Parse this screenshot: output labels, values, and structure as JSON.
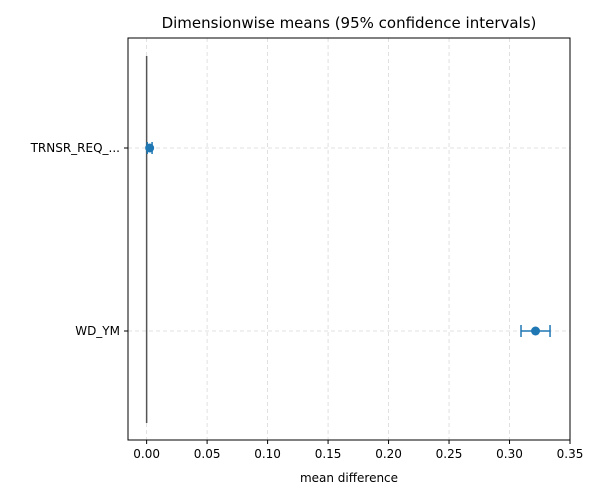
{
  "chart_data": {
    "type": "scatter",
    "title": "Dimensionwise means (95% confidence intervals)",
    "xlabel": "mean difference",
    "ylabel": "",
    "xlim": [
      -0.0154,
      0.35
    ],
    "xticks": [
      0.0,
      0.05,
      0.1,
      0.15,
      0.2,
      0.25,
      0.3,
      0.35
    ],
    "xtick_labels": [
      "0.00",
      "0.05",
      "0.10",
      "0.15",
      "0.20",
      "0.25",
      "0.30",
      "0.35"
    ],
    "grid": true,
    "reference_line_x": 0.0,
    "categories": [
      "TRNSR_REQ_...",
      "WD_YM"
    ],
    "points": [
      {
        "label": "TRNSR_REQ_...",
        "mean": 0.0025,
        "ci_low": 0.0005,
        "ci_high": 0.0045
      },
      {
        "label": "WD_YM",
        "mean": 0.3215,
        "ci_low": 0.3095,
        "ci_high": 0.3335
      }
    ],
    "colors": {
      "marker": "#1f77b4",
      "reference_line": "#555555",
      "grid": "#d9d9d9",
      "axes": "#000000"
    }
  }
}
